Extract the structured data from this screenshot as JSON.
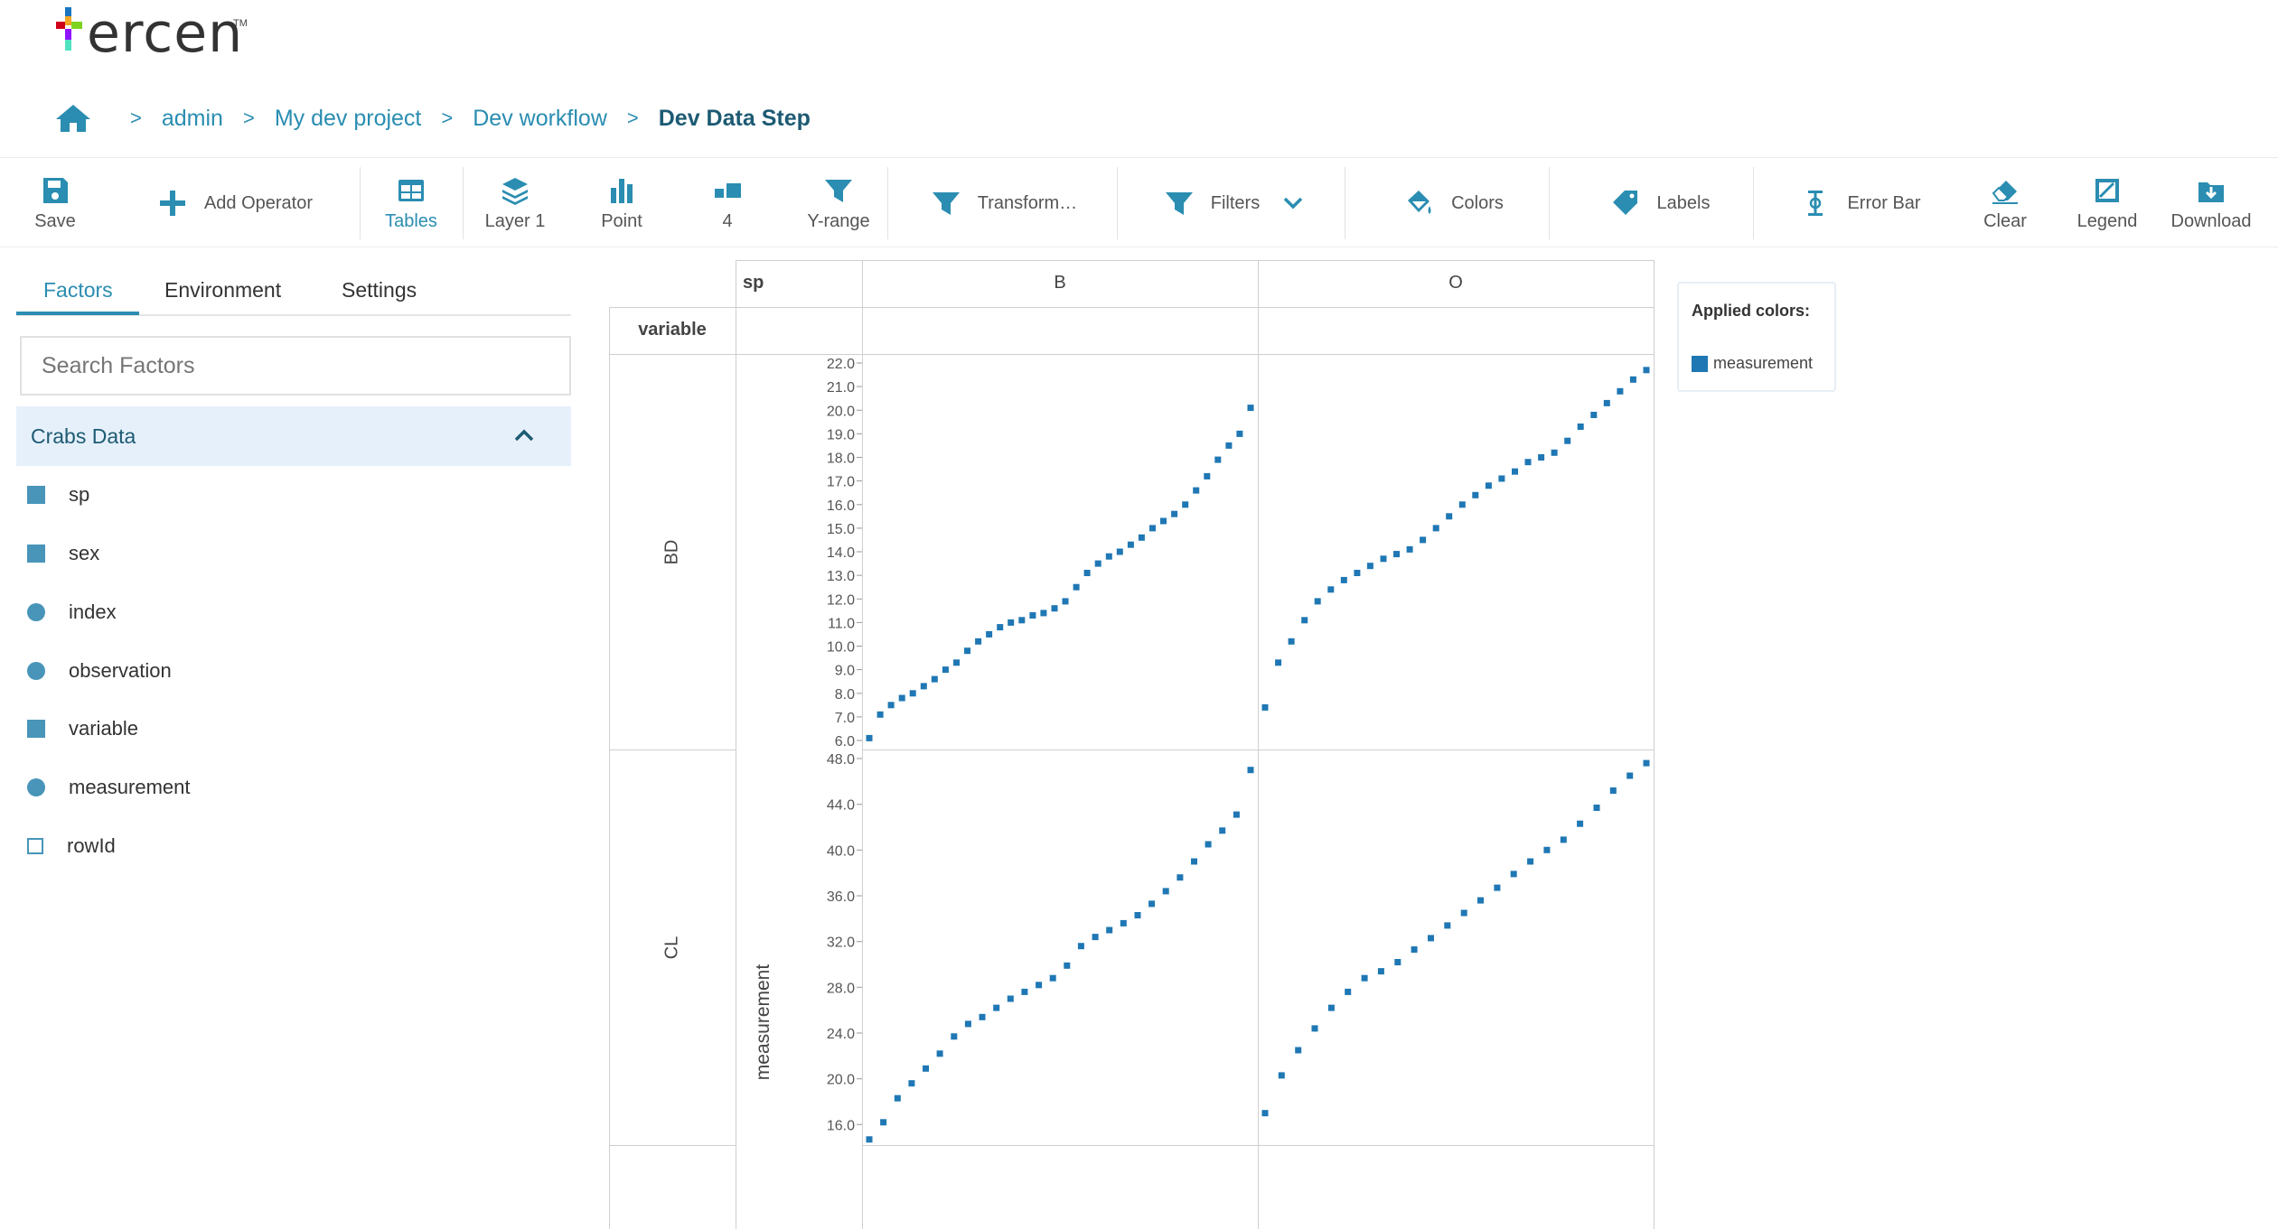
{
  "logo": {
    "text": "ercen",
    "tm": "TM"
  },
  "breadcrumb": {
    "items": [
      "admin",
      "My dev project",
      "Dev workflow"
    ],
    "current": "Dev Data Step",
    "separator": ">"
  },
  "toolbar": {
    "save": "Save",
    "add_operator": "Add Operator",
    "tables": "Tables",
    "layer": "Layer 1",
    "point": "Point",
    "count": "4",
    "yrange": "Y-range",
    "transform": "Transform…",
    "filters": "Filters",
    "colors": "Colors",
    "labels": "Labels",
    "error_bar": "Error Bar",
    "clear": "Clear",
    "legend": "Legend",
    "download": "Download"
  },
  "panel": {
    "tabs": [
      "Factors",
      "Environment",
      "Settings"
    ],
    "search_placeholder": "Search Factors",
    "section_title": "Crabs Data",
    "factors": [
      {
        "name": "sp",
        "icon": "square-icon"
      },
      {
        "name": "sex",
        "icon": "square-icon"
      },
      {
        "name": "index",
        "icon": "circle-icon"
      },
      {
        "name": "observation",
        "icon": "circle-icon"
      },
      {
        "name": "variable",
        "icon": "square-icon"
      },
      {
        "name": "measurement",
        "icon": "circle-icon"
      },
      {
        "name": "rowId",
        "icon": "square-outline-icon"
      }
    ]
  },
  "grid": {
    "col_factor": "sp",
    "row_factor": "variable",
    "columns": [
      "B",
      "O"
    ],
    "rows": [
      "BD",
      "CL"
    ],
    "y_axis_label": "measurement"
  },
  "legend": {
    "title": "Applied colors:",
    "item": "measurement",
    "color": "#1f77b4"
  },
  "chart_data": [
    {
      "type": "scatter",
      "panel": "BD / B",
      "ylim": [
        6,
        22
      ],
      "yticks": [
        "6.0",
        "7.0",
        "8.0",
        "9.0",
        "10.0",
        "11.0",
        "12.0",
        "13.0",
        "14.0",
        "15.0",
        "16.0",
        "17.0",
        "18.0",
        "19.0",
        "20.0",
        "21.0",
        "22.0"
      ],
      "y": [
        6.1,
        7.1,
        7.5,
        7.8,
        8.0,
        8.3,
        8.6,
        9.0,
        9.3,
        9.8,
        10.2,
        10.5,
        10.8,
        11.0,
        11.1,
        11.3,
        11.4,
        11.6,
        11.9,
        12.5,
        13.1,
        13.5,
        13.8,
        14.0,
        14.3,
        14.6,
        15.0,
        15.3,
        15.6,
        16.0,
        16.6,
        17.2,
        17.9,
        18.5,
        19.0,
        20.1
      ]
    },
    {
      "type": "scatter",
      "panel": "BD / O",
      "ylim": [
        6,
        22
      ],
      "y": [
        7.4,
        9.3,
        10.2,
        11.1,
        11.9,
        12.4,
        12.8,
        13.1,
        13.4,
        13.7,
        13.9,
        14.1,
        14.5,
        15.0,
        15.5,
        16.0,
        16.4,
        16.8,
        17.1,
        17.4,
        17.8,
        18.0,
        18.2,
        18.7,
        19.3,
        19.8,
        20.3,
        20.8,
        21.3,
        21.7
      ]
    },
    {
      "type": "scatter",
      "panel": "CL / B",
      "ylim": [
        15,
        48
      ],
      "yticks": [
        "16.0",
        "20.0",
        "24.0",
        "28.0",
        "32.0",
        "36.0",
        "40.0",
        "44.0",
        "48.0"
      ],
      "y": [
        14.7,
        16.2,
        18.3,
        19.6,
        20.9,
        22.2,
        23.7,
        24.8,
        25.4,
        26.2,
        27.0,
        27.6,
        28.2,
        28.8,
        29.9,
        31.6,
        32.4,
        33.0,
        33.6,
        34.3,
        35.3,
        36.4,
        37.6,
        39.0,
        40.5,
        41.7,
        43.1,
        47.0
      ]
    },
    {
      "type": "scatter",
      "panel": "CL / O",
      "ylim": [
        15,
        48
      ],
      "y": [
        17.0,
        20.3,
        22.5,
        24.4,
        26.2,
        27.6,
        28.8,
        29.4,
        30.2,
        31.3,
        32.3,
        33.4,
        34.5,
        35.6,
        36.7,
        37.9,
        39.0,
        40.0,
        40.9,
        42.3,
        43.7,
        45.2,
        46.5,
        47.6
      ]
    }
  ]
}
